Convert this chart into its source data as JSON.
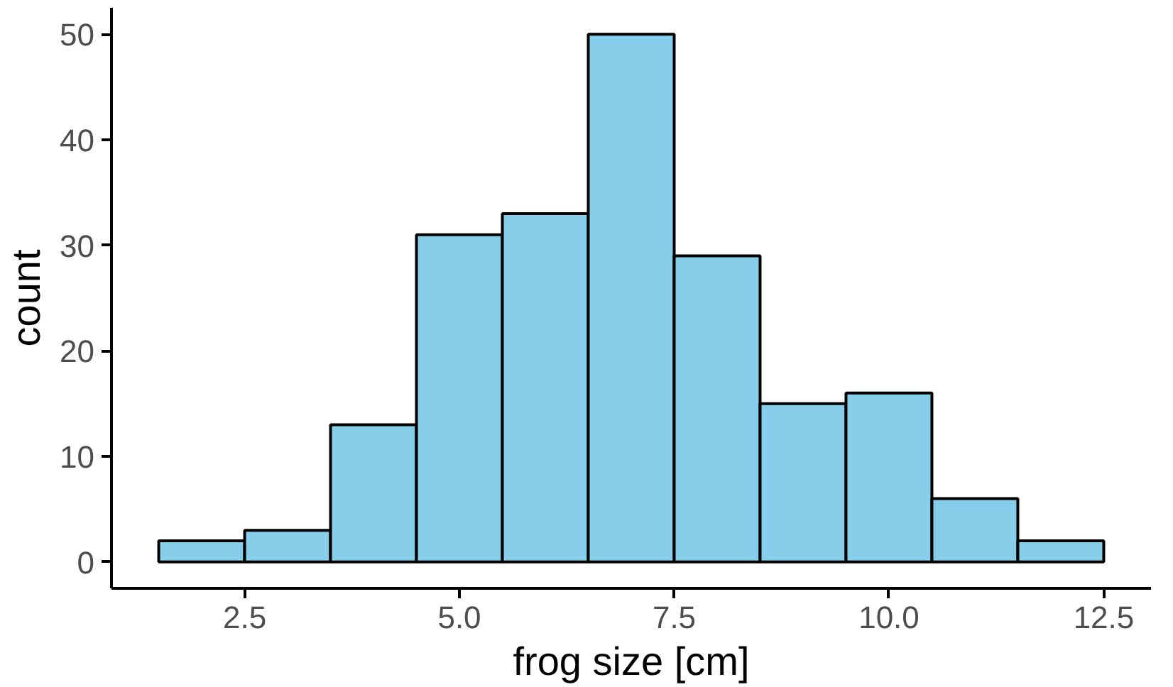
{
  "chart_data": {
    "type": "histogram",
    "xlabel": "frog size [cm]",
    "ylabel": "count",
    "bins": [
      1.5,
      2.5,
      3.5,
      4.5,
      5.5,
      6.5,
      7.5,
      8.5,
      9.5,
      10.5,
      11.5,
      12.5
    ],
    "values": [
      2,
      3,
      13,
      31,
      33,
      50,
      29,
      15,
      16,
      6,
      2
    ],
    "color": "#87ceeb",
    "xlim": [
      0.95,
      13.05
    ],
    "ylim": [
      -2.5,
      52.5
    ],
    "xticks": [
      {
        "value": 2.5,
        "label": "2.5"
      },
      {
        "value": 5,
        "label": "5.0"
      },
      {
        "value": 7.5,
        "label": "7.5"
      },
      {
        "value": 10,
        "label": "10.0"
      },
      {
        "value": 12.5,
        "label": "12.5"
      }
    ],
    "yticks": [
      0,
      10,
      20,
      30,
      40,
      50
    ],
    "grid": false
  }
}
